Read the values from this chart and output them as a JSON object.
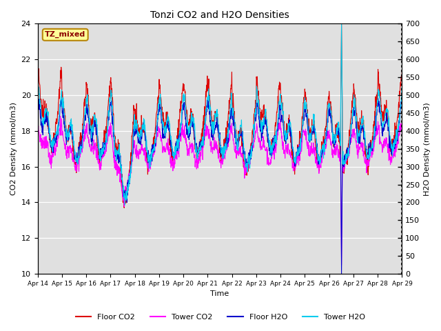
{
  "title": "Tonzi CO2 and H2O Densities",
  "xlabel": "Time",
  "ylabel_left": "CO2 Density (mmol/m3)",
  "ylabel_right": "H2O Density (mmol/m3)",
  "annotation": "TZ_mixed",
  "ylim_left": [
    10,
    24
  ],
  "ylim_right": [
    0,
    700
  ],
  "yticks_left": [
    10,
    12,
    14,
    16,
    18,
    20,
    22,
    24
  ],
  "yticks_right": [
    0,
    50,
    100,
    150,
    200,
    250,
    300,
    350,
    400,
    450,
    500,
    550,
    600,
    650,
    700
  ],
  "xtick_labels": [
    "Apr 14",
    "Apr 15",
    "Apr 16",
    "Apr 17",
    "Apr 18",
    "Apr 19",
    "Apr 20",
    "Apr 21",
    "Apr 22",
    "Apr 23",
    "Apr 24",
    "Apr 25",
    "Apr 26",
    "Apr 27",
    "Apr 28",
    "Apr 29"
  ],
  "colors": {
    "floor_co2": "#dd0000",
    "tower_co2": "#ff00ff",
    "floor_h2o": "#0000cc",
    "tower_h2o": "#00ccee"
  },
  "legend_labels": [
    "Floor CO2",
    "Tower CO2",
    "Floor H2O",
    "Tower H2O"
  ],
  "bg_color": "#e0e0e0",
  "linewidth": 0.8,
  "n_days": 15,
  "pts_per_day": 96
}
